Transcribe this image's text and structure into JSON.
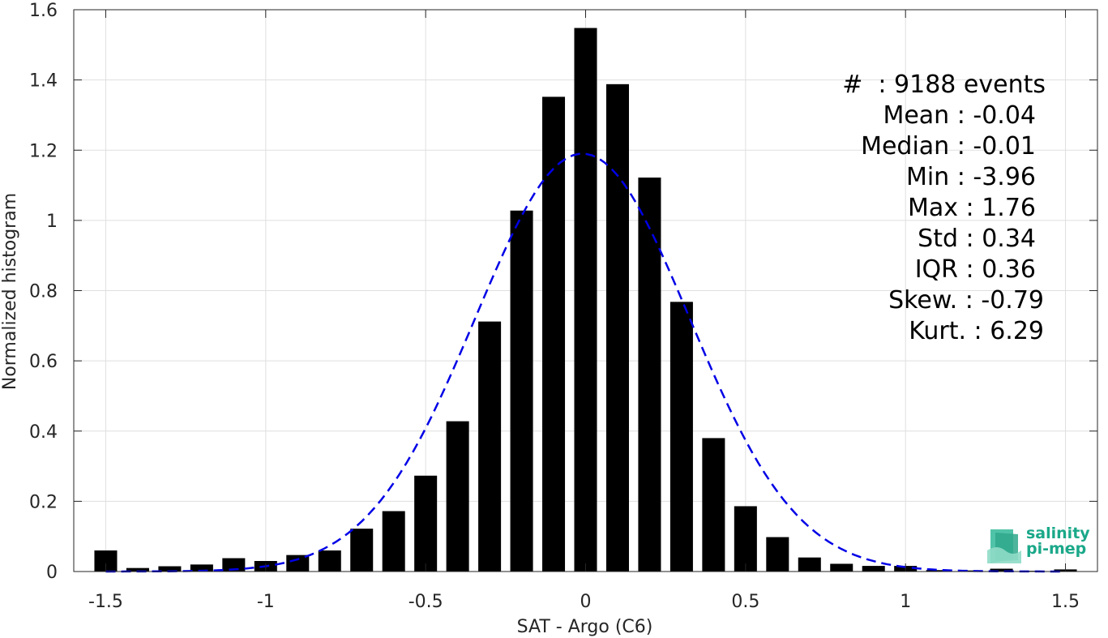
{
  "chart_data": {
    "type": "bar",
    "xlabel": "SAT - Argo (C6)",
    "ylabel": "Normalized histogram",
    "xlim": [
      -1.6,
      1.6
    ],
    "ylim": [
      0,
      1.6
    ],
    "xticks": [
      -1.5,
      -1,
      -0.5,
      0,
      0.5,
      1,
      1.5
    ],
    "xtick_labels": [
      "-1.5",
      "-1",
      "-0.5",
      "0",
      "0.5",
      "1",
      "1.5"
    ],
    "yticks": [
      0,
      0.2,
      0.4,
      0.6,
      0.8,
      1,
      1.2,
      1.4,
      1.6
    ],
    "ytick_labels": [
      "0",
      "0.2",
      "0.4",
      "0.6",
      "0.8",
      "1",
      "1.2",
      "1.4",
      "1.6"
    ],
    "grid": true,
    "bar_color": "#000000",
    "fit_color": "#0000e6",
    "x": [
      -1.5,
      -1.4,
      -1.3,
      -1.2,
      -1.1,
      -1.0,
      -0.9,
      -0.8,
      -0.7,
      -0.6,
      -0.5,
      -0.4,
      -0.3,
      -0.2,
      -0.1,
      0.0,
      0.1,
      0.2,
      0.3,
      0.4,
      0.5,
      0.6,
      0.7,
      0.8,
      0.9,
      1.0,
      1.1,
      1.2,
      1.3,
      1.4,
      1.5
    ],
    "values": [
      0.06,
      0.01,
      0.015,
      0.02,
      0.038,
      0.03,
      0.047,
      0.06,
      0.122,
      0.172,
      0.273,
      0.428,
      0.712,
      1.028,
      1.352,
      1.548,
      1.388,
      1.122,
      0.768,
      0.38,
      0.186,
      0.098,
      0.04,
      0.022,
      0.016,
      0.016,
      0.004,
      0.003,
      0.008,
      0.002,
      0.006
    ],
    "fit_curve": {
      "style": "dashed",
      "mean": -0.01,
      "std": 0.335,
      "peak": 1.19
    }
  },
  "stats": {
    "events": "#  : 9188 events",
    "mean": "Mean : -0.04",
    "median": "Median : -0.01",
    "min": "Min : -3.96",
    "max": "Max : 1.76",
    "std": "Std : 0.34",
    "iqr": "IQR : 0.36",
    "skew": "Skew. : -0.79",
    "kurt": "Kurt. : 6.29"
  },
  "logo": {
    "line1": "salinity",
    "line2": "pi-mep",
    "color": "#1aa889"
  }
}
